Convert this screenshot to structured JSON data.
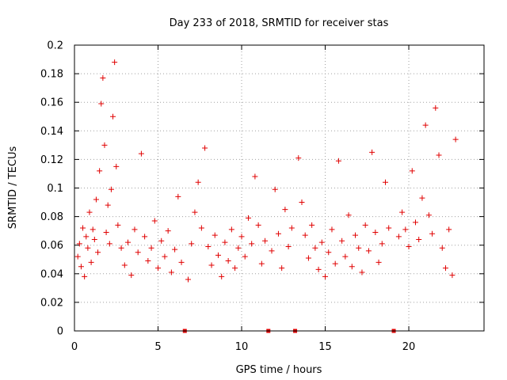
{
  "chart_data": {
    "type": "scatter",
    "title": "Day 233 of 2018, SRMTID for receiver stas",
    "xlabel": "GPS time / hours",
    "ylabel": "SRMTID / TECUs",
    "xlim": [
      0,
      24.5
    ],
    "ylim": [
      0,
      0.2
    ],
    "x_ticks": [
      0,
      5,
      10,
      15,
      20
    ],
    "x_tick_labels": [
      "0",
      "5",
      "10",
      "15",
      "20"
    ],
    "y_ticks": [
      0,
      0.02,
      0.04,
      0.06,
      0.08,
      0.1,
      0.12,
      0.14,
      0.16,
      0.18,
      0.2
    ],
    "y_tick_labels": [
      "0",
      "0.02",
      "0.04",
      "0.06",
      "0.08",
      "0.1",
      "0.12",
      "0.14",
      "0.16",
      "0.18",
      "0.2"
    ],
    "grid": true,
    "marker": "+",
    "color": "#e00000",
    "gap_markers_x": [
      6.6,
      11.6,
      13.2,
      19.1
    ],
    "series": [
      {
        "name": "SRMTID",
        "points": [
          [
            0.2,
            0.052
          ],
          [
            0.3,
            0.061
          ],
          [
            0.4,
            0.045
          ],
          [
            0.5,
            0.072
          ],
          [
            0.6,
            0.038
          ],
          [
            0.7,
            0.066
          ],
          [
            0.8,
            0.058
          ],
          [
            0.9,
            0.083
          ],
          [
            1.0,
            0.048
          ],
          [
            1.1,
            0.071
          ],
          [
            1.2,
            0.064
          ],
          [
            1.3,
            0.092
          ],
          [
            1.4,
            0.055
          ],
          [
            1.5,
            0.112
          ],
          [
            1.6,
            0.159
          ],
          [
            1.7,
            0.177
          ],
          [
            1.8,
            0.13
          ],
          [
            1.9,
            0.069
          ],
          [
            2.0,
            0.088
          ],
          [
            2.1,
            0.061
          ],
          [
            2.2,
            0.099
          ],
          [
            2.3,
            0.15
          ],
          [
            2.4,
            0.188
          ],
          [
            2.5,
            0.115
          ],
          [
            2.6,
            0.074
          ],
          [
            2.8,
            0.058
          ],
          [
            3.0,
            0.046
          ],
          [
            3.2,
            0.062
          ],
          [
            3.4,
            0.039
          ],
          [
            3.6,
            0.071
          ],
          [
            3.8,
            0.055
          ],
          [
            4.0,
            0.124
          ],
          [
            4.2,
            0.066
          ],
          [
            4.4,
            0.049
          ],
          [
            4.6,
            0.058
          ],
          [
            4.8,
            0.077
          ],
          [
            5.0,
            0.044
          ],
          [
            5.2,
            0.063
          ],
          [
            5.4,
            0.052
          ],
          [
            5.6,
            0.07
          ],
          [
            5.8,
            0.041
          ],
          [
            6.0,
            0.057
          ],
          [
            6.2,
            0.094
          ],
          [
            6.4,
            0.048
          ],
          [
            6.8,
            0.036
          ],
          [
            7.0,
            0.061
          ],
          [
            7.2,
            0.083
          ],
          [
            7.4,
            0.104
          ],
          [
            7.6,
            0.072
          ],
          [
            7.8,
            0.128
          ],
          [
            8.0,
            0.059
          ],
          [
            8.2,
            0.046
          ],
          [
            8.4,
            0.067
          ],
          [
            8.6,
            0.053
          ],
          [
            8.8,
            0.038
          ],
          [
            9.0,
            0.062
          ],
          [
            9.2,
            0.049
          ],
          [
            9.4,
            0.071
          ],
          [
            9.6,
            0.044
          ],
          [
            9.8,
            0.058
          ],
          [
            10.0,
            0.066
          ],
          [
            10.2,
            0.052
          ],
          [
            10.4,
            0.079
          ],
          [
            10.6,
            0.061
          ],
          [
            10.8,
            0.108
          ],
          [
            11.0,
            0.074
          ],
          [
            11.2,
            0.047
          ],
          [
            11.4,
            0.063
          ],
          [
            11.8,
            0.056
          ],
          [
            12.0,
            0.099
          ],
          [
            12.2,
            0.068
          ],
          [
            12.4,
            0.044
          ],
          [
            12.6,
            0.085
          ],
          [
            12.8,
            0.059
          ],
          [
            13.0,
            0.072
          ],
          [
            13.4,
            0.121
          ],
          [
            13.6,
            0.09
          ],
          [
            13.8,
            0.067
          ],
          [
            14.0,
            0.051
          ],
          [
            14.2,
            0.074
          ],
          [
            14.4,
            0.058
          ],
          [
            14.6,
            0.043
          ],
          [
            14.8,
            0.062
          ],
          [
            15.0,
            0.038
          ],
          [
            15.2,
            0.055
          ],
          [
            15.4,
            0.071
          ],
          [
            15.6,
            0.047
          ],
          [
            15.8,
            0.119
          ],
          [
            16.0,
            0.063
          ],
          [
            16.2,
            0.052
          ],
          [
            16.4,
            0.081
          ],
          [
            16.6,
            0.045
          ],
          [
            16.8,
            0.067
          ],
          [
            17.0,
            0.058
          ],
          [
            17.2,
            0.041
          ],
          [
            17.4,
            0.074
          ],
          [
            17.6,
            0.056
          ],
          [
            17.8,
            0.125
          ],
          [
            18.0,
            0.069
          ],
          [
            18.2,
            0.048
          ],
          [
            18.4,
            0.061
          ],
          [
            18.6,
            0.104
          ],
          [
            18.8,
            0.072
          ],
          [
            19.4,
            0.066
          ],
          [
            19.6,
            0.083
          ],
          [
            19.8,
            0.071
          ],
          [
            20.0,
            0.059
          ],
          [
            20.2,
            0.112
          ],
          [
            20.4,
            0.076
          ],
          [
            20.6,
            0.064
          ],
          [
            20.8,
            0.093
          ],
          [
            21.0,
            0.144
          ],
          [
            21.2,
            0.081
          ],
          [
            21.4,
            0.068
          ],
          [
            21.6,
            0.156
          ],
          [
            21.8,
            0.123
          ],
          [
            22.0,
            0.058
          ],
          [
            22.2,
            0.044
          ],
          [
            22.4,
            0.071
          ],
          [
            22.6,
            0.039
          ],
          [
            22.8,
            0.134
          ]
        ]
      }
    ]
  }
}
